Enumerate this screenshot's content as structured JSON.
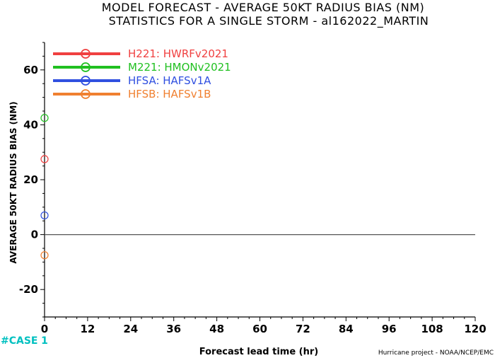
{
  "chart_data": {
    "type": "scatter",
    "title": "MODEL FORECAST - AVERAGE 50KT RADIUS BIAS (NM)",
    "subtitle": "STATISTICS FOR A SINGLE STORM - al162022_MARTIN",
    "xlabel": "Forecast lead time (hr)",
    "ylabel": "AVERAGE 50KT RADIUS BIAS (NM)",
    "xlim": [
      0,
      120
    ],
    "ylim": [
      -30,
      70
    ],
    "xticks": [
      0,
      12,
      24,
      36,
      48,
      60,
      72,
      84,
      96,
      108,
      120
    ],
    "yticks": [
      -20,
      0,
      20,
      40,
      60
    ],
    "grid": false,
    "zero_line": true,
    "legend_position": "top-left",
    "series": [
      {
        "name": "H221: HWRFv2021",
        "color": "#f04040",
        "x": [
          0
        ],
        "y": [
          27.5
        ]
      },
      {
        "name": "M221: HMONv2021",
        "color": "#20c020",
        "x": [
          0
        ],
        "y": [
          42.5
        ]
      },
      {
        "name": "HFSA: HAFSv1A",
        "color": "#3050e0",
        "x": [
          0
        ],
        "y": [
          7
        ]
      },
      {
        "name": "HFSB: HAFSv1B",
        "color": "#f08030",
        "x": [
          0
        ],
        "y": [
          -7.5
        ]
      }
    ],
    "cases_label": "#CASE",
    "cases": [
      {
        "x": 0,
        "count": "1"
      }
    ]
  },
  "footer": {
    "credit": "Hurricane project - NOAA/NCEP/EMC"
  },
  "colors": {
    "cases": "#00c0c0",
    "axis": "#000000"
  }
}
